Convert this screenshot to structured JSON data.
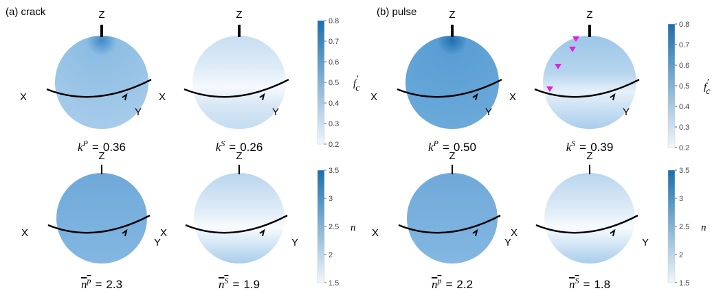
{
  "panels": [
    {
      "label": "(a) crack",
      "spheres": [
        {
          "axes": {
            "z": "Z",
            "x": "X",
            "y": "Y"
          },
          "caption": {
            "base": "k",
            "sup": "P",
            "eq": "=",
            "value": "0.36"
          }
        },
        {
          "axes": {
            "z": "Z",
            "x": "X",
            "y": "Y"
          },
          "caption": {
            "base": "k",
            "sup": "S",
            "eq": "=",
            "value": "0.26"
          }
        },
        {
          "axes": {
            "z": "Z",
            "x": "X",
            "y": "Y"
          },
          "caption": {
            "base": "n",
            "sup": "p",
            "eq": "=",
            "value": "2.3",
            "overline": true
          }
        },
        {
          "axes": {
            "z": "Z",
            "x": "X",
            "y": "Y"
          },
          "caption": {
            "base": "n",
            "sup": "S",
            "eq": "=",
            "value": "1.9",
            "overline": true
          }
        }
      ],
      "colorbars": [
        {
          "label": {
            "base": "f",
            "sup": "′",
            "sub": "c"
          },
          "range": [
            0.2,
            0.8
          ],
          "ticks": [
            0.2,
            0.3,
            0.4,
            0.5,
            0.6,
            0.7,
            0.8
          ]
        },
        {
          "label": {
            "base": "n"
          },
          "range": [
            1.5,
            3.5
          ],
          "ticks": [
            1.5,
            2,
            2.5,
            3,
            3.5
          ]
        }
      ]
    },
    {
      "label": "(b) pulse",
      "spheres": [
        {
          "axes": {
            "z": "Z",
            "x": "X",
            "y": "Y"
          },
          "caption": {
            "base": "k",
            "sup": "P",
            "eq": "=",
            "value": "0.50"
          }
        },
        {
          "axes": {
            "z": "Z",
            "x": "X",
            "y": "Y"
          },
          "caption": {
            "base": "k",
            "sup": "S",
            "eq": "=",
            "value": "0.39"
          }
        },
        {
          "axes": {
            "z": "Z",
            "x": "X",
            "y": "Y"
          },
          "caption": {
            "base": "n",
            "sup": "p",
            "eq": "=",
            "value": "2.2",
            "overline": true
          }
        },
        {
          "axes": {
            "z": "Z",
            "x": "X",
            "y": "Y"
          },
          "caption": {
            "base": "n",
            "sup": "S",
            "eq": "=",
            "value": "1.8",
            "overline": true
          }
        }
      ],
      "colorbars": [
        {
          "label": {
            "base": "f",
            "sup": "′",
            "sub": "c"
          },
          "range": [
            0.2,
            0.8
          ],
          "ticks": [
            0.2,
            0.3,
            0.4,
            0.5,
            0.6,
            0.7,
            0.8
          ]
        },
        {
          "label": {
            "base": "n"
          },
          "range": [
            1.5,
            3.5
          ],
          "ticks": [
            1.5,
            2,
            2.5,
            3,
            3.5
          ]
        }
      ]
    }
  ]
}
